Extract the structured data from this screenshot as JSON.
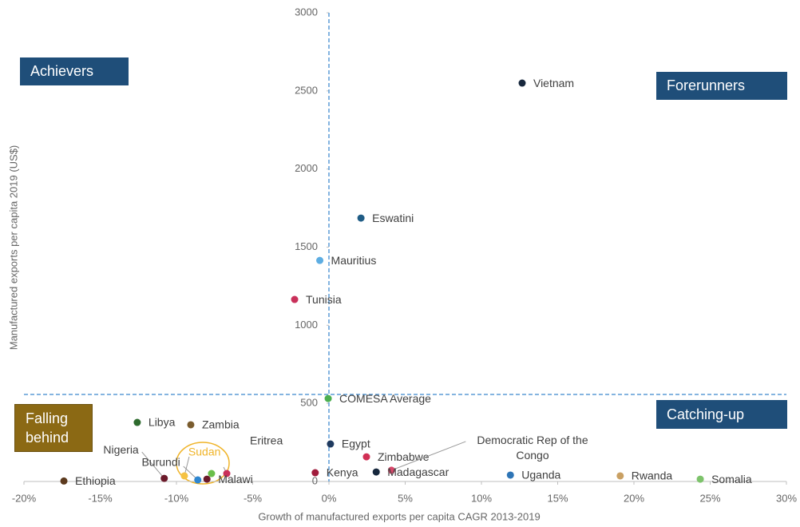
{
  "chart_data": {
    "type": "scatter",
    "xlabel": "Growth of manufactured exports per capita CAGR 2013-2019",
    "ylabel": "Manufactured exports per capita 2019 (US$)",
    "labels": [
      "Vietnam",
      "Eswatini",
      "Mauritius",
      "Tunisia",
      "COMESA Average",
      "Egypt",
      "Zimbabwe",
      "Democratic Rep of the Congo",
      "Madagascar",
      "Kenya",
      "Uganda",
      "Rwanda",
      "Somalia",
      "Libya",
      "Zambia",
      "Eritrea",
      "Malawi",
      "Nigeria",
      "Burundi",
      "Sudan",
      null,
      "Ethiopia"
    ],
    "x": [
      12.67,
      2.1,
      -0.6,
      -2.25,
      -0.05,
      0.1,
      2.46,
      4.1,
      3.1,
      -0.9,
      11.9,
      19.1,
      24.35,
      -12.57,
      -9.06,
      -6.7,
      -8.0,
      -10.8,
      -8.6,
      -9.48,
      -7.7,
      -17.38
    ],
    "y": [
      2550,
      1686,
      1415,
      1165,
      531,
      240,
      158,
      72,
      61,
      56,
      41,
      36,
      15,
      378,
      363,
      51,
      15,
      20,
      10,
      36,
      51,
      3
    ],
    "colors": [
      "#17283d",
      "#1f5c85",
      "#5dade2",
      "#c9305a",
      "#4caf50",
      "#1f3a5f",
      "#d12f55",
      "#d8476a",
      "#17283d",
      "#a01c3c",
      "#2e75b6",
      "#c9a063",
      "#7dc36b",
      "#2e6b2e",
      "#7a5c2e",
      "#c9305a",
      "#6b1a2a",
      "#6b1a2a",
      "#2e86d0",
      "#f5c242",
      "#6abf4b",
      "#5c3a1e"
    ],
    "highlight_label_color": "#f0b429",
    "xlim": [
      -20,
      30
    ],
    "ylim": [
      0,
      3000
    ],
    "xticks": [
      {
        "value": -20,
        "label": "-20%"
      },
      {
        "value": -15,
        "label": "-15%"
      },
      {
        "value": -10,
        "label": "-10%"
      },
      {
        "value": -5,
        "label": "-5%"
      },
      {
        "value": 0,
        "label": "0%"
      },
      {
        "value": 5,
        "label": "5%"
      },
      {
        "value": 10,
        "label": "10%"
      },
      {
        "value": 15,
        "label": "15%"
      },
      {
        "value": 20,
        "label": "20%"
      },
      {
        "value": 25,
        "label": "25%"
      },
      {
        "value": 30,
        "label": "30%"
      }
    ],
    "yticks": [
      0,
      500,
      1000,
      1500,
      2000,
      2500,
      3000
    ],
    "vline": 0,
    "hline": 557,
    "quadrants": [
      "Achievers",
      "Forerunners",
      "Catching-up",
      "Falling behind"
    ]
  }
}
